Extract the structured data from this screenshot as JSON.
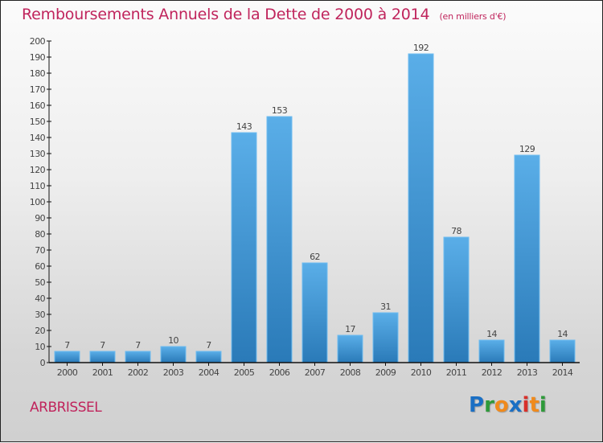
{
  "header": {
    "title": "Remboursements Annuels de la Dette de 2000 à 2014",
    "unit": "(en milliers d'€)"
  },
  "footer": {
    "commune": "ARBRISSEL",
    "logo": {
      "letters": [
        "P",
        "r",
        "o",
        "x",
        "i",
        "t",
        "i"
      ],
      "colors": [
        "#1a6fc4",
        "#2e9a3a",
        "#f08a1c",
        "#1a6fc4",
        "#d8302a",
        "#f08a1c",
        "#2e9a3a"
      ]
    }
  },
  "colors": {
    "title": "#c0245c",
    "bar_top": "#5aaee8",
    "bar_bottom": "#2a7ab8",
    "bar_edge": "#6fbcf0",
    "axis": "#111111",
    "label": "#444444"
  },
  "chart_data": {
    "type": "bar",
    "title": "Remboursements Annuels de la Dette de 2000 à 2014",
    "subtitle": "(en milliers d'€)",
    "xlabel": "",
    "ylabel": "",
    "categories": [
      "2000",
      "2001",
      "2002",
      "2003",
      "2004",
      "2005",
      "2006",
      "2007",
      "2008",
      "2009",
      "2010",
      "2011",
      "2012",
      "2013",
      "2014"
    ],
    "values": [
      7,
      7,
      7,
      10,
      7,
      143,
      153,
      62,
      17,
      31,
      192,
      78,
      14,
      129,
      14
    ],
    "data_labels": [
      "7",
      "7",
      "7",
      "10",
      "7",
      "143",
      "153",
      "62",
      "17",
      "31",
      "192",
      "78",
      "14",
      "129",
      "14"
    ],
    "ylim": [
      0,
      200
    ],
    "yticks": [
      0,
      10,
      20,
      30,
      40,
      50,
      60,
      70,
      80,
      90,
      100,
      110,
      120,
      130,
      140,
      150,
      160,
      170,
      180,
      190,
      200
    ],
    "grid": false,
    "legend": "none"
  }
}
